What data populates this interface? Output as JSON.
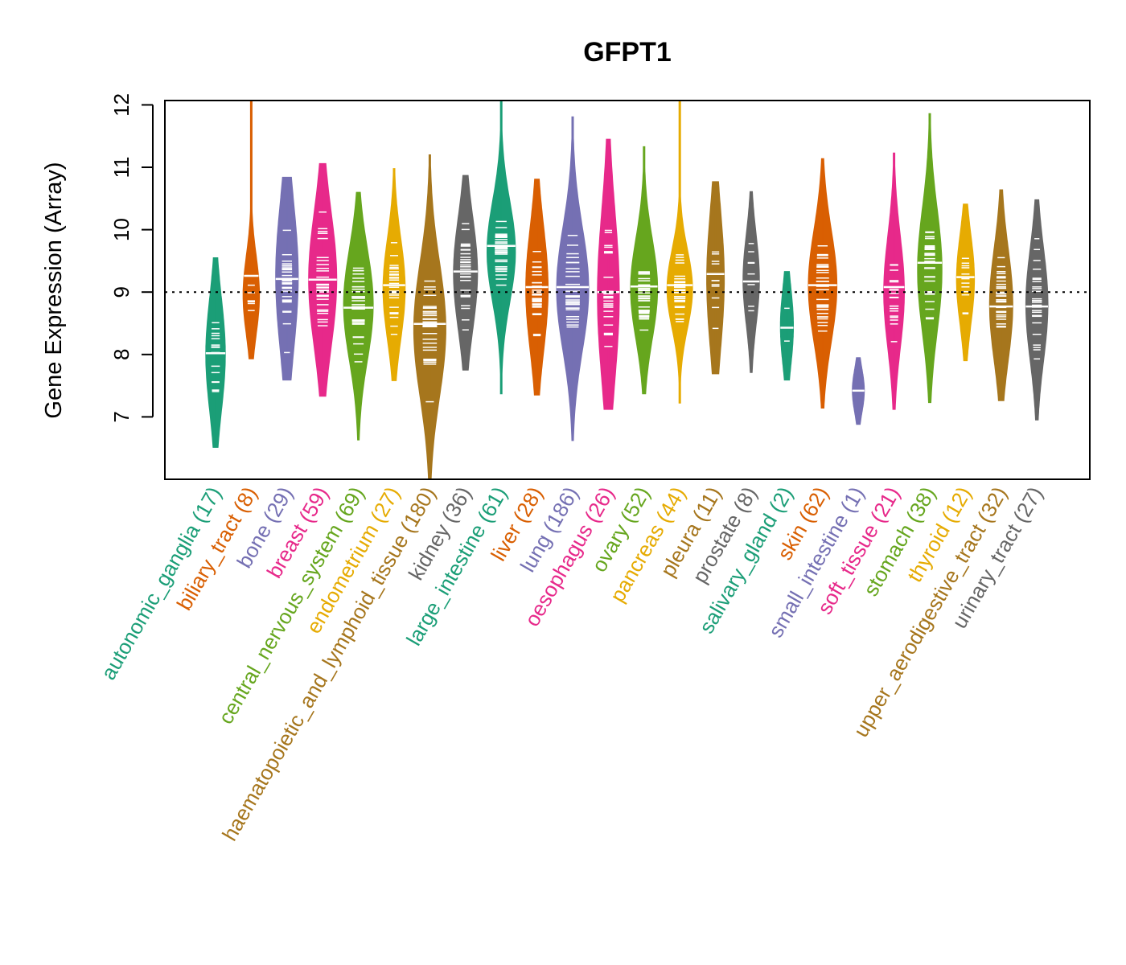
{
  "chart_data": {
    "type": "violin",
    "title": "GFPT1",
    "xlabel": "",
    "ylabel": "Gene Expression (Array)",
    "ylim": [
      6.0,
      12.07
    ],
    "yticks": [
      7,
      8,
      9,
      10,
      11,
      12
    ],
    "reference_line": {
      "value": 9.0,
      "style": "dotted",
      "color": "#000000"
    },
    "grid": false,
    "legend": "none",
    "palette": [
      "#1B9E77",
      "#D95F02",
      "#7570B3",
      "#E7298A",
      "#66A61E",
      "#E6AB02",
      "#A6761D",
      "#666666"
    ],
    "categories": [
      {
        "name": "autonomic_ganglia",
        "n": 17,
        "label": "autonomic_ganglia (17)",
        "color": "#1B9E77",
        "median": 8.02,
        "min": 6.51,
        "max": 9.55,
        "q1": 7.5,
        "q3": 8.5
      },
      {
        "name": "biliary_tract",
        "n": 8,
        "label": "biliary_tract (8)",
        "color": "#D95F02",
        "median": 9.26,
        "min": 7.93,
        "max": 12.07,
        "q1": 8.6,
        "q3": 9.3
      },
      {
        "name": "bone",
        "n": 29,
        "label": "bone (29)",
        "color": "#7570B3",
        "median": 9.21,
        "min": 7.59,
        "max": 10.84,
        "q1": 8.6,
        "q3": 9.9
      },
      {
        "name": "breast",
        "n": 59,
        "label": "breast (59)",
        "color": "#E7298A",
        "median": 9.2,
        "min": 7.33,
        "max": 11.06,
        "q1": 8.6,
        "q3": 9.8
      },
      {
        "name": "central_nervous_system",
        "n": 69,
        "label": "central_nervous_system (69)",
        "color": "#66A61E",
        "median": 8.75,
        "min": 6.63,
        "max": 10.6,
        "q1": 8.3,
        "q3": 9.3
      },
      {
        "name": "endometrium",
        "n": 27,
        "label": "endometrium (27)",
        "color": "#E6AB02",
        "median": 9.11,
        "min": 7.58,
        "max": 10.98,
        "q1": 8.6,
        "q3": 9.5
      },
      {
        "name": "haematopoietic_and_lymphoid_tissue",
        "n": 180,
        "label": "haematopoietic_and_lymphoid_tissue (180)",
        "color": "#A6761D",
        "median": 8.49,
        "min": 6.0,
        "max": 11.2,
        "q1": 7.8,
        "q3": 9.0
      },
      {
        "name": "kidney",
        "n": 36,
        "label": "kidney (36)",
        "color": "#666666",
        "median": 9.33,
        "min": 7.75,
        "max": 10.87,
        "q1": 8.8,
        "q3": 9.8
      },
      {
        "name": "large_intestine",
        "n": 61,
        "label": "large_intestine (61)",
        "color": "#1B9E77",
        "median": 9.74,
        "min": 7.37,
        "max": 12.07,
        "q1": 9.2,
        "q3": 10.1
      },
      {
        "name": "liver",
        "n": 28,
        "label": "liver (28)",
        "color": "#D95F02",
        "median": 9.08,
        "min": 7.35,
        "max": 10.81,
        "q1": 8.5,
        "q3": 9.6
      },
      {
        "name": "lung",
        "n": 186,
        "label": "lung (186)",
        "color": "#7570B3",
        "median": 9.08,
        "min": 6.62,
        "max": 11.81,
        "q1": 8.5,
        "q3": 9.6
      },
      {
        "name": "oesophagus",
        "n": 26,
        "label": "oesophagus (26)",
        "color": "#E7298A",
        "median": 9.0,
        "min": 7.12,
        "max": 11.45,
        "q1": 8.2,
        "q3": 9.7
      },
      {
        "name": "ovary",
        "n": 52,
        "label": "ovary (52)",
        "color": "#66A61E",
        "median": 9.09,
        "min": 7.37,
        "max": 11.33,
        "q1": 8.6,
        "q3": 9.5
      },
      {
        "name": "pancreas",
        "n": 44,
        "label": "pancreas (44)",
        "color": "#E6AB02",
        "median": 9.11,
        "min": 7.22,
        "max": 12.07,
        "q1": 8.7,
        "q3": 9.4
      },
      {
        "name": "pleura",
        "n": 11,
        "label": "pleura (11)",
        "color": "#A6761D",
        "median": 9.29,
        "min": 7.69,
        "max": 10.77,
        "q1": 8.6,
        "q3": 9.8
      },
      {
        "name": "prostate",
        "n": 8,
        "label": "prostate (8)",
        "color": "#666666",
        "median": 9.17,
        "min": 7.71,
        "max": 10.61,
        "q1": 8.8,
        "q3": 9.6
      },
      {
        "name": "salivary_gland",
        "n": 2,
        "label": "salivary_gland (2)",
        "color": "#1B9E77",
        "median": 8.43,
        "min": 7.59,
        "max": 9.33,
        "q1": 8.1,
        "q3": 8.8
      },
      {
        "name": "skin",
        "n": 62,
        "label": "skin (62)",
        "color": "#D95F02",
        "median": 9.11,
        "min": 7.14,
        "max": 11.14,
        "q1": 8.6,
        "q3": 9.6
      },
      {
        "name": "small_intestine",
        "n": 1,
        "label": "small_intestine (1)",
        "color": "#7570B3",
        "median": 7.42,
        "min": 6.88,
        "max": 7.95,
        "q1": 7.42,
        "q3": 7.42
      },
      {
        "name": "soft_tissue",
        "n": 21,
        "label": "soft_tissue (21)",
        "color": "#E7298A",
        "median": 9.08,
        "min": 7.12,
        "max": 11.23,
        "q1": 8.5,
        "q3": 9.5
      },
      {
        "name": "stomach",
        "n": 38,
        "label": "stomach (38)",
        "color": "#66A61E",
        "median": 9.47,
        "min": 7.23,
        "max": 11.86,
        "q1": 8.8,
        "q3": 9.9
      },
      {
        "name": "thyroid",
        "n": 12,
        "label": "thyroid (12)",
        "color": "#E6AB02",
        "median": 9.24,
        "min": 7.9,
        "max": 10.41,
        "q1": 8.8,
        "q3": 9.6
      },
      {
        "name": "upper_aerodigestive_tract",
        "n": 32,
        "label": "upper_aerodigestive_tract (32)",
        "color": "#A6761D",
        "median": 8.77,
        "min": 7.26,
        "max": 10.64,
        "q1": 8.3,
        "q3": 9.3
      },
      {
        "name": "urinary_tract",
        "n": 27,
        "label": "urinary_tract (27)",
        "color": "#666666",
        "median": 8.77,
        "min": 6.95,
        "max": 10.48,
        "q1": 8.3,
        "q3": 9.3
      }
    ]
  }
}
